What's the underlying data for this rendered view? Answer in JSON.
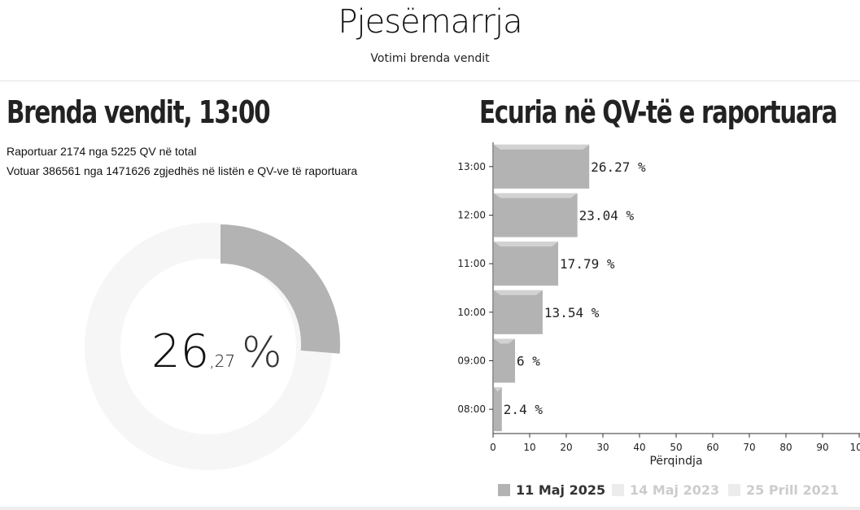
{
  "header": {
    "title": "Pjesëmarrja",
    "subtitle": "Votimi brenda vendit"
  },
  "left": {
    "title": "Brenda vendit, 13:00",
    "line1": "Raportuar 2174 nga 5225 QV në total",
    "line2": "Votuar 386561 nga 1471626 zgjedhës në listën e QV-ve të raportuara",
    "donut": {
      "value": 26.27,
      "integer": "26",
      "decimal": ",27",
      "unit": "%",
      "fill_color": "#b3b3b3",
      "track_color": "#f7f6f6"
    }
  },
  "right": {
    "title": "Ecuria në QV-të e raportuara"
  },
  "chart_data": {
    "type": "bar",
    "orientation": "horizontal",
    "categories": [
      "13:00",
      "12:00",
      "11:00",
      "10:00",
      "09:00",
      "08:00"
    ],
    "series": [
      {
        "name": "11 Maj 2025",
        "values": [
          26.27,
          23.04,
          17.79,
          13.54,
          6,
          2.4
        ],
        "labels": [
          "26.27 %",
          "23.04 %",
          "17.79 %",
          "13.54 %",
          "6 %",
          "2.4 %"
        ]
      }
    ],
    "xlabel": "Përqindja",
    "xlim": [
      0,
      100
    ],
    "xticks": [
      0,
      10,
      20,
      30,
      40,
      50,
      60,
      70,
      80,
      90,
      100
    ],
    "legend": [
      {
        "label": "11 Maj 2025",
        "color": "#b3b3b3",
        "text_color": "#333333"
      },
      {
        "label": "14 Maj 2023",
        "color": "#ececec",
        "text_color": "#cccccc"
      },
      {
        "label": "25 Prill 2021",
        "color": "#ececec",
        "text_color": "#cccccc"
      }
    ],
    "legend_position": "bottom",
    "bar_color": "#b3b3b3"
  }
}
